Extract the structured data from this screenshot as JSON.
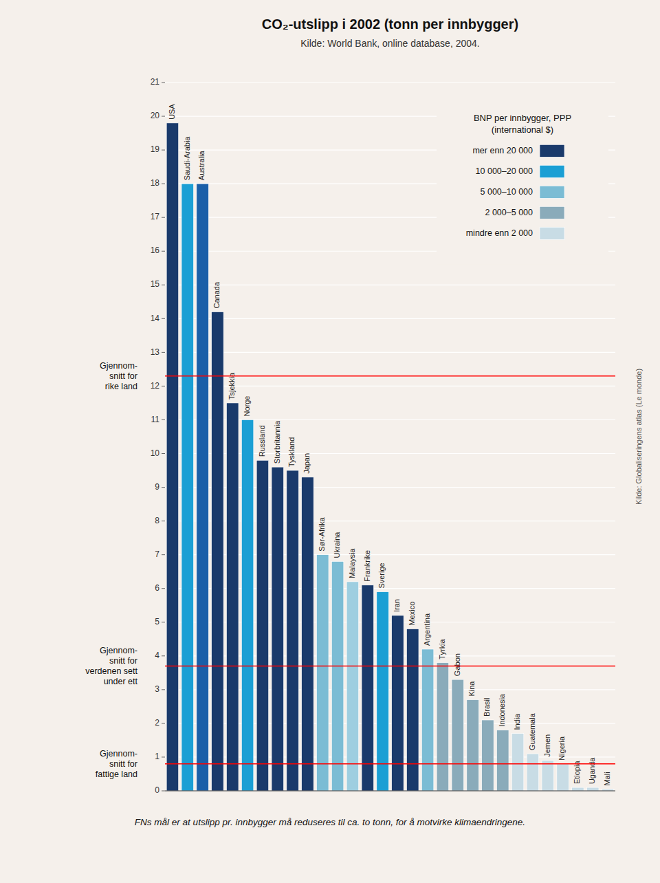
{
  "chart_data": {
    "type": "bar",
    "title": "CO₂-utslipp i 2002 (tonn per innbygger)",
    "subtitle": "Kilde: World Bank, online database, 2004.",
    "categories": [
      "USA",
      "Saudi-Arabia",
      "Australia",
      "Canada",
      "Tsjekkia",
      "Norge",
      "Russland",
      "Storbritannia",
      "Tyskland",
      "Japan",
      "Sør-Afrika",
      "Ukraina",
      "Malaysia",
      "Frankrike",
      "Sverige",
      "Iran",
      "Mexico",
      "Argentina",
      "Tyrkia",
      "Gabon",
      "Kina",
      "Brasil",
      "Indonesia",
      "India",
      "Guatemala",
      "Jemen",
      "Nigeria",
      "Etiopia",
      "Uganda",
      "Mali"
    ],
    "values": [
      19.8,
      18.0,
      18.0,
      14.2,
      11.5,
      11.0,
      9.8,
      9.6,
      9.5,
      9.3,
      7.0,
      6.8,
      6.2,
      6.1,
      5.9,
      5.2,
      4.8,
      4.2,
      3.8,
      3.3,
      2.7,
      2.1,
      1.8,
      1.7,
      1.1,
      0.9,
      0.8,
      0.1,
      0.1,
      0.05
    ],
    "colors": [
      "#1a3a6b",
      "#1b9fd4",
      "#1a5fa8",
      "#1a3a6b",
      "#1a3a6b",
      "#1b9fd4",
      "#1a3a6b",
      "#1a3a6b",
      "#1a3a6b",
      "#1a3a6b",
      "#7bbcd4",
      "#7bbcd4",
      "#9ecee0",
      "#1a3a6b",
      "#1b9fd4",
      "#1a3a6b",
      "#1a3a6b",
      "#7bbcd4",
      "#8aabba",
      "#8aabba",
      "#8aabba",
      "#8aabba",
      "#8aabba",
      "#c8dce5",
      "#c8dce5",
      "#c8dce5",
      "#c8dce5",
      "#c8dce5",
      "#c8dce5",
      "#c8dce5"
    ],
    "ylim": [
      0,
      21
    ],
    "yticks": [
      0,
      1,
      2,
      3,
      4,
      5,
      6,
      7,
      8,
      9,
      10,
      11,
      12,
      13,
      14,
      15,
      16,
      17,
      18,
      19,
      20,
      21
    ],
    "grid": true,
    "reference_lines": [
      {
        "value": 12.3,
        "label": "Gjennom-\nsnitt for\nrike land",
        "color": "red"
      },
      {
        "value": 3.7,
        "label": "Gjennom-\nsnitt for\nverdenen sett\nunder ett",
        "color": "red"
      },
      {
        "value": 0.8,
        "label": "Gjennom-\nsnitt for\nfattige land",
        "color": "red"
      }
    ],
    "legend": "upper right",
    "legend_title": "BNP per innbygger, PPP\n(international $)",
    "legend_items": [
      {
        "label": "mer enn 20 000",
        "color": "#1a3a6b"
      },
      {
        "label": "10 000–20 000",
        "color": "#1b9fd4"
      },
      {
        "label": "5 000–10 000",
        "color": "#7bbcd4"
      },
      {
        "label": "2 000–5 000",
        "color": "#8aabba"
      },
      {
        "label": "mindre enn 2 000",
        "color": "#c8dce5"
      }
    ],
    "source": "Kilde: Globaliseringens atlas (Le monde)",
    "footnote": "FNs mål er at utslipp pr. innbygger må reduseres til ca. to tonn, for å motvirke klimaendringene."
  }
}
